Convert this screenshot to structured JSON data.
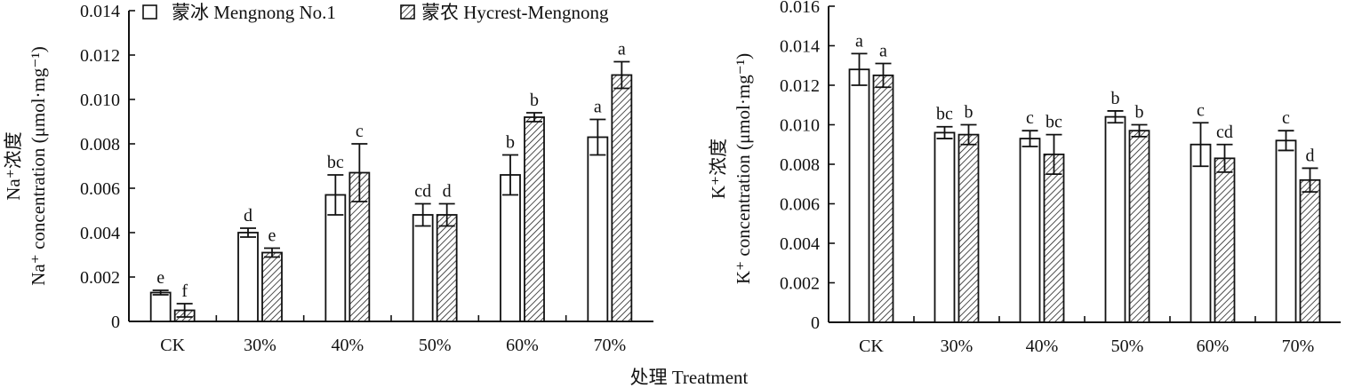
{
  "figure": {
    "shared_xlabel": "处理 Treatment"
  },
  "legend": {
    "items": [
      {
        "name": "蒙冰 Mengnong No.1",
        "pattern": "open"
      },
      {
        "name": "蒙农 Hycrest-Mengnong",
        "pattern": "hatched"
      }
    ]
  },
  "chart_data": [
    {
      "type": "bar",
      "title": "",
      "ylabel_line1": "Na⁺浓度",
      "ylabel_line2": "Na⁺ concentration (μmol·mg⁻¹)",
      "xlabel": "处理 Treatment",
      "ylim": [
        0,
        0.014
      ],
      "yticks": [
        0,
        0.002,
        0.004,
        0.006,
        0.008,
        0.01,
        0.012,
        0.014
      ],
      "ytick_labels": [
        "0",
        "0.002",
        "0.004",
        "0.006",
        "0.008",
        "0.010",
        "0.012",
        "0.014"
      ],
      "categories": [
        "CK",
        "30%",
        "40%",
        "50%",
        "60%",
        "70%"
      ],
      "series": [
        {
          "name": "蒙冰 Mengnong No.1",
          "values": [
            0.0013,
            0.004,
            0.0057,
            0.0048,
            0.0066,
            0.0083
          ],
          "errors": [
            0.0001,
            0.0002,
            0.0009,
            0.0005,
            0.0009,
            0.0008
          ],
          "letters": [
            "e",
            "d",
            "bc",
            "cd",
            "b",
            "a"
          ]
        },
        {
          "name": "蒙农 Hycrest-Mengnong",
          "values": [
            0.0005,
            0.0031,
            0.0067,
            0.0048,
            0.0092,
            0.0111
          ],
          "errors": [
            0.0003,
            0.0002,
            0.0013,
            0.0005,
            0.0002,
            0.0006
          ],
          "letters": [
            "f",
            "e",
            "c",
            "d",
            "b",
            "a"
          ]
        }
      ],
      "grid": false,
      "legend_position": "top"
    },
    {
      "type": "bar",
      "title": "",
      "ylabel_line1": "K⁺浓度",
      "ylabel_line2": "K⁺ concentration (μmol·mg⁻¹)",
      "xlabel": "处理 Treatment",
      "ylim": [
        0,
        0.016
      ],
      "yticks": [
        0,
        0.002,
        0.004,
        0.006,
        0.008,
        0.01,
        0.012,
        0.014,
        0.016
      ],
      "ytick_labels": [
        "0",
        "0.002",
        "0.004",
        "0.006",
        "0.008",
        "0.010",
        "0.012",
        "0.014",
        "0.016"
      ],
      "categories": [
        "CK",
        "30%",
        "40%",
        "50%",
        "60%",
        "70%"
      ],
      "series": [
        {
          "name": "蒙冰 Mengnong No.1",
          "values": [
            0.0128,
            0.0096,
            0.0093,
            0.0104,
            0.009,
            0.0092
          ],
          "errors": [
            0.0008,
            0.0003,
            0.0004,
            0.0003,
            0.0011,
            0.0005
          ],
          "letters": [
            "a",
            "bc",
            "c",
            "b",
            "c",
            "c"
          ]
        },
        {
          "name": "蒙农 Hycrest-Mengnong",
          "values": [
            0.0125,
            0.0095,
            0.0085,
            0.0097,
            0.0083,
            0.0072
          ],
          "errors": [
            0.0006,
            0.0005,
            0.001,
            0.0003,
            0.0007,
            0.0006
          ],
          "letters": [
            "a",
            "b",
            "bc",
            "b",
            "cd",
            "d"
          ]
        }
      ],
      "grid": false,
      "legend_position": "none"
    }
  ]
}
